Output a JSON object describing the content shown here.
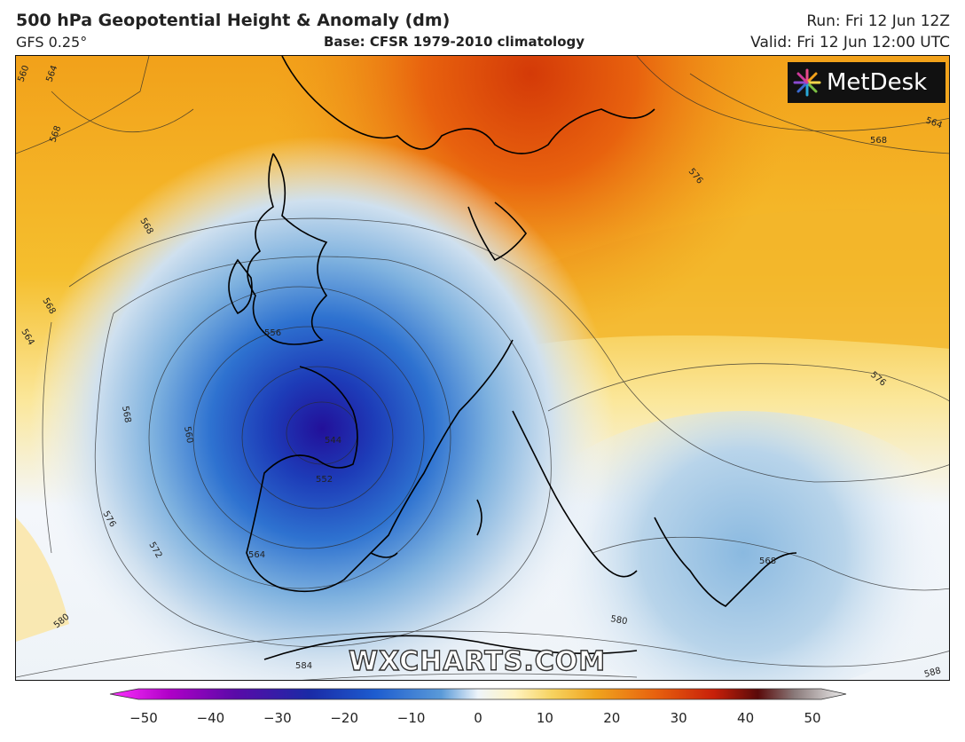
{
  "header": {
    "title": "500 hPa Geopotential Height & Anomaly (dm)",
    "model": "GFS 0.25°",
    "base": "Base: CFSR 1979-2010 climatology",
    "run": "Run: Fri 12 Jun 12Z",
    "valid": "Valid: Fri 12 Jun 12:00 UTC"
  },
  "logo": {
    "text": "MetDesk",
    "icon": "starburst-logo-icon"
  },
  "watermark": "WXCHARTS.COM",
  "contour_labels": [
    "560",
    "564",
    "568",
    "572",
    "576",
    "580",
    "584",
    "588",
    "556",
    "552",
    "544"
  ],
  "colorbar": {
    "ticks": [
      "−50",
      "−40",
      "−30",
      "−20",
      "−10",
      "0",
      "10",
      "20",
      "30",
      "40",
      "50"
    ],
    "colors": [
      "#ff33ff",
      "#b000c8",
      "#5a0aa8",
      "#1a2aa6",
      "#1d5ccf",
      "#5a9ad8",
      "#a9cde6",
      "#eef4fa",
      "#fff9d8",
      "#f6d360",
      "#f0a41e",
      "#e8620e",
      "#c8200a",
      "#8a0d0a",
      "#3a0a0a",
      "#b8a8a8",
      "#efefef"
    ]
  },
  "colors": {
    "low_center": "#22109a",
    "deep_blue": "#1d4cc4",
    "mid_blue": "#5b97d6",
    "light_blue": "#cfe0ef",
    "neutral": "#f4f7fb",
    "yellow": "#f8d24c",
    "orange": "#f2a11a",
    "red_orange": "#e85a0c"
  }
}
